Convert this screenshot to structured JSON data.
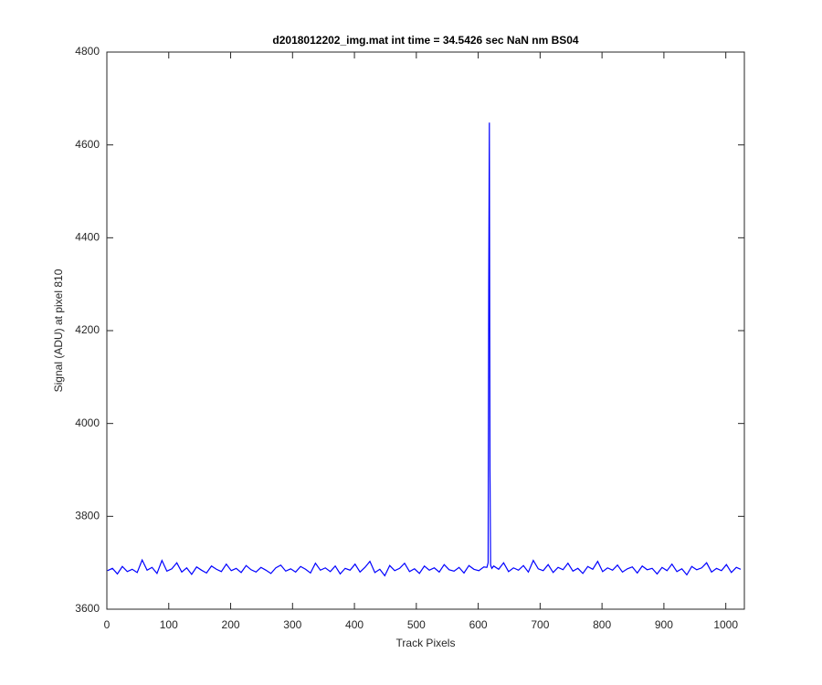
{
  "chart_data": {
    "type": "line",
    "title": "d2018012202_img.mat int time = 34.5426 sec  NaN nm BS04",
    "x_label": "Track Pixels",
    "y_label": "Signal (ADU) at pixel 810",
    "xlim": [
      0,
      1030
    ],
    "ylim": [
      3600,
      4800
    ],
    "xticks": [
      0,
      100,
      200,
      300,
      400,
      500,
      600,
      700,
      800,
      900,
      1000
    ],
    "yticks": [
      3600,
      3800,
      4000,
      4200,
      4400,
      4600,
      4800
    ],
    "series": [
      {
        "color": "#0000ff",
        "x": [
          1,
          9,
          17,
          25,
          33,
          41,
          49,
          57,
          65,
          73,
          81,
          89,
          97,
          105,
          113,
          121,
          129,
          137,
          145,
          153,
          161,
          169,
          177,
          185,
          193,
          201,
          209,
          217,
          225,
          233,
          241,
          249,
          257,
          265,
          273,
          281,
          289,
          297,
          305,
          313,
          321,
          329,
          337,
          345,
          353,
          361,
          369,
          377,
          385,
          393,
          401,
          409,
          417,
          425,
          433,
          441,
          449,
          457,
          465,
          473,
          481,
          489,
          497,
          505,
          513,
          521,
          529,
          537,
          545,
          553,
          561,
          569,
          577,
          585,
          593,
          601,
          609,
          614,
          616,
          617,
          618,
          619,
          620,
          622,
          625,
          633,
          641,
          649,
          657,
          665,
          673,
          681,
          689,
          697,
          705,
          713,
          721,
          729,
          737,
          745,
          753,
          761,
          769,
          777,
          785,
          793,
          801,
          809,
          817,
          825,
          833,
          841,
          849,
          857,
          865,
          873,
          881,
          889,
          897,
          905,
          913,
          921,
          929,
          937,
          945,
          953,
          961,
          969,
          977,
          985,
          993,
          1001,
          1009,
          1017,
          1024
        ],
        "values": [
          3683,
          3688,
          3676,
          3692,
          3681,
          3686,
          3679,
          3706,
          3684,
          3690,
          3677,
          3705,
          3682,
          3687,
          3700,
          3680,
          3689,
          3675,
          3691,
          3684,
          3678,
          3693,
          3686,
          3681,
          3697,
          3683,
          3688,
          3679,
          3694,
          3685,
          3680,
          3690,
          3684,
          3677,
          3689,
          3695,
          3682,
          3687,
          3680,
          3692,
          3686,
          3678,
          3699,
          3684,
          3689,
          3681,
          3693,
          3676,
          3688,
          3684,
          3697,
          3680,
          3690,
          3703,
          3679,
          3686,
          3672,
          3694,
          3683,
          3688,
          3699,
          3681,
          3687,
          3677,
          3693,
          3684,
          3689,
          3680,
          3696,
          3685,
          3682,
          3690,
          3678,
          3694,
          3686,
          3683,
          3691,
          3690,
          3700,
          4300,
          4648,
          3900,
          3695,
          3688,
          3693,
          3686,
          3700,
          3681,
          3689,
          3684,
          3694,
          3680,
          3705,
          3687,
          3683,
          3696,
          3679,
          3690,
          3685,
          3699,
          3682,
          3688,
          3677,
          3692,
          3686,
          3703,
          3681,
          3689,
          3684,
          3695,
          3680,
          3687,
          3691,
          3678,
          3693,
          3685,
          3688,
          3676,
          3690,
          3683,
          3697,
          3681,
          3687,
          3674,
          3692,
          3685,
          3689,
          3700,
          3680,
          3688,
          3683,
          3696,
          3679,
          3690,
          3686
        ]
      }
    ]
  }
}
